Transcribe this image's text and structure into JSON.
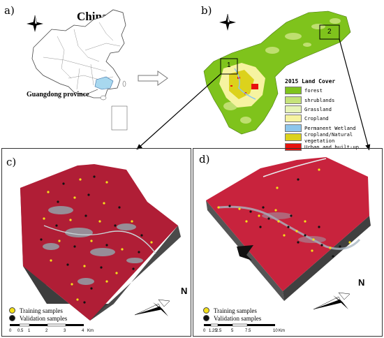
{
  "panels": {
    "a": {
      "label": "a)",
      "title": "China",
      "province_label": "Guangdong province",
      "north_letter": "N"
    },
    "b": {
      "label": "b)",
      "north_letter": "N",
      "site_labels": [
        "1",
        "2"
      ],
      "legend": {
        "title": "2015 Land Cover",
        "items": [
          {
            "label": "forest",
            "color": "#7fc31c"
          },
          {
            "label": "shrublands",
            "color": "#c6e37a"
          },
          {
            "label": "Grassland",
            "color": "#e7f4b8"
          },
          {
            "label": "Cropland",
            "color": "#f6f3a0"
          },
          {
            "label": "Permanent Wetland",
            "color": "#8ec6ec"
          },
          {
            "label": "Cropland/Natural vegetation",
            "color": "#dcd21c"
          },
          {
            "label": "Urban and built-up",
            "color": "#e8120e"
          }
        ]
      }
    },
    "c": {
      "label": "c)",
      "north_letter": "N",
      "samples": {
        "training": "Training samples",
        "validation": "Validation samples"
      },
      "scale": {
        "ticks": [
          "0",
          "0.5",
          "1",
          "2",
          "3",
          "4"
        ],
        "unit": "Km"
      }
    },
    "d": {
      "label": "d)",
      "north_letter": "N",
      "samples": {
        "training": "Training samples",
        "validation": "Validation samples"
      },
      "scale": {
        "ticks": [
          "0",
          "1.25",
          "2.5",
          "5",
          "7.5",
          "10"
        ],
        "unit": "Km"
      }
    }
  },
  "colors": {
    "training": "#f4e11a",
    "validation": "#111111",
    "infrared_red": "#c0203a",
    "block_side": "#555555",
    "guangdong": "#a8d8ef"
  }
}
